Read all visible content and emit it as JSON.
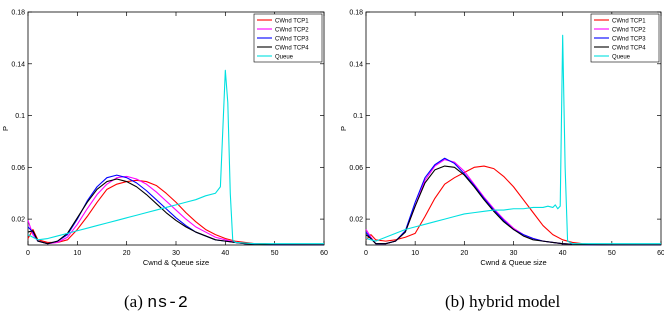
{
  "captions": [
    {
      "label": "(a)",
      "text": "ns-2"
    },
    {
      "label": "(b)",
      "text": "hybrid model"
    }
  ],
  "chart_data": [
    {
      "type": "line",
      "title": "",
      "xlabel": "Cwnd & Queue size",
      "ylabel": "P",
      "xlim": [
        0,
        60
      ],
      "ylim": [
        0,
        0.18
      ],
      "xticks": [
        0,
        10,
        20,
        30,
        40,
        50,
        60
      ],
      "yticks": [
        0.02,
        0.06,
        0.1,
        0.14,
        0.18
      ],
      "grid": false,
      "legend_position": "top-right",
      "series": [
        {
          "name": "CWnd TCP1",
          "color": "#ff0000",
          "x": [
            0,
            1,
            2,
            4,
            6,
            8,
            10,
            12,
            14,
            16,
            18,
            20,
            22,
            24,
            26,
            28,
            30,
            32,
            34,
            36,
            38,
            40,
            42,
            44,
            46,
            48,
            50,
            55,
            60
          ],
          "y": [
            0.005,
            0.012,
            0.004,
            0.002,
            0.002,
            0.004,
            0.012,
            0.022,
            0.033,
            0.043,
            0.047,
            0.049,
            0.05,
            0.049,
            0.046,
            0.04,
            0.033,
            0.025,
            0.018,
            0.012,
            0.008,
            0.005,
            0.003,
            0.002,
            0.001,
            0.001,
            0.0005,
            0.0003,
            0.0002
          ]
        },
        {
          "name": "CWnd TCP2",
          "color": "#ff00ff",
          "x": [
            0,
            1,
            2,
            4,
            6,
            8,
            10,
            12,
            14,
            16,
            18,
            20,
            22,
            24,
            26,
            28,
            30,
            32,
            34,
            36,
            38,
            40,
            42,
            44,
            46,
            48,
            50,
            55,
            60
          ],
          "y": [
            0.019,
            0.008,
            0.003,
            0.001,
            0.002,
            0.006,
            0.016,
            0.028,
            0.039,
            0.047,
            0.052,
            0.053,
            0.051,
            0.047,
            0.041,
            0.034,
            0.027,
            0.02,
            0.014,
            0.01,
            0.006,
            0.004,
            0.002,
            0.001,
            0.001,
            0.0005,
            0.0003,
            0.0002,
            0.0001
          ]
        },
        {
          "name": "CWnd TCP3",
          "color": "#0000ff",
          "x": [
            0,
            1,
            2,
            4,
            6,
            8,
            10,
            12,
            14,
            16,
            18,
            20,
            22,
            24,
            26,
            28,
            30,
            32,
            34,
            36,
            38,
            40,
            42,
            44,
            46,
            48,
            50,
            55,
            60
          ],
          "y": [
            0.014,
            0.01,
            0.003,
            0.001,
            0.003,
            0.008,
            0.02,
            0.034,
            0.045,
            0.052,
            0.054,
            0.052,
            0.048,
            0.042,
            0.035,
            0.028,
            0.021,
            0.015,
            0.01,
            0.007,
            0.004,
            0.003,
            0.002,
            0.001,
            0.0005,
            0.0003,
            0.0002,
            0.0001,
            0.0001
          ]
        },
        {
          "name": "CWnd TCP4",
          "color": "#000000",
          "x": [
            0,
            1,
            2,
            4,
            6,
            8,
            10,
            12,
            14,
            16,
            18,
            20,
            22,
            24,
            26,
            28,
            30,
            32,
            34,
            36,
            38,
            40,
            42,
            44,
            46,
            48,
            50,
            55,
            60
          ],
          "y": [
            0.01,
            0.011,
            0.003,
            0.001,
            0.003,
            0.009,
            0.021,
            0.033,
            0.043,
            0.049,
            0.051,
            0.049,
            0.045,
            0.039,
            0.032,
            0.025,
            0.019,
            0.014,
            0.01,
            0.007,
            0.004,
            0.003,
            0.002,
            0.001,
            0.0005,
            0.0003,
            0.0002,
            0.0001,
            0.0001
          ]
        },
        {
          "name": "Queue",
          "color": "#00e0e0",
          "x": [
            0,
            1,
            2,
            4,
            6,
            8,
            10,
            12,
            14,
            16,
            18,
            20,
            22,
            24,
            26,
            28,
            30,
            32,
            34,
            36,
            38,
            39,
            40,
            40.5,
            41,
            41.5,
            42,
            44,
            46,
            48,
            50,
            55,
            60
          ],
          "y": [
            0.008,
            0.006,
            0.004,
            0.005,
            0.007,
            0.009,
            0.011,
            0.013,
            0.015,
            0.017,
            0.019,
            0.021,
            0.023,
            0.025,
            0.027,
            0.029,
            0.031,
            0.033,
            0.035,
            0.038,
            0.04,
            0.045,
            0.135,
            0.11,
            0.04,
            0.004,
            0.002,
            0.0015,
            0.001,
            0.001,
            0.001,
            0.001,
            0.001
          ]
        }
      ]
    },
    {
      "type": "line",
      "title": "",
      "xlabel": "Cwnd & Queue size",
      "ylabel": "P",
      "xlim": [
        0,
        60
      ],
      "ylim": [
        0,
        0.18
      ],
      "xticks": [
        0,
        10,
        20,
        30,
        40,
        50,
        60
      ],
      "yticks": [
        0.02,
        0.06,
        0.1,
        0.14,
        0.18
      ],
      "grid": false,
      "legend_position": "top-right",
      "series": [
        {
          "name": "CWnd TCP1",
          "color": "#ff0000",
          "x": [
            0,
            1,
            2,
            4,
            6,
            8,
            10,
            12,
            14,
            16,
            18,
            20,
            22,
            24,
            26,
            28,
            30,
            32,
            34,
            36,
            38,
            40,
            42,
            44,
            46,
            48,
            50,
            55,
            60
          ],
          "y": [
            0.004,
            0.008,
            0.004,
            0.003,
            0.004,
            0.006,
            0.009,
            0.022,
            0.036,
            0.047,
            0.052,
            0.056,
            0.06,
            0.061,
            0.059,
            0.053,
            0.045,
            0.035,
            0.025,
            0.015,
            0.008,
            0.004,
            0.002,
            0.001,
            0.0005,
            0.0003,
            0.0002,
            0.0001,
            0.0001
          ]
        },
        {
          "name": "CWnd TCP2",
          "color": "#ff00ff",
          "x": [
            0,
            1,
            2,
            4,
            6,
            8,
            10,
            12,
            14,
            16,
            18,
            20,
            22,
            24,
            26,
            28,
            30,
            32,
            34,
            36,
            38,
            40,
            42,
            44,
            46,
            48,
            50,
            55,
            60
          ],
          "y": [
            0.012,
            0.006,
            0.001,
            0.001,
            0.003,
            0.01,
            0.03,
            0.05,
            0.061,
            0.066,
            0.064,
            0.057,
            0.047,
            0.037,
            0.028,
            0.02,
            0.013,
            0.008,
            0.005,
            0.003,
            0.002,
            0.001,
            0.0005,
            0.0003,
            0.0002,
            0.0001,
            0.0001,
            0.0001,
            0.0001
          ]
        },
        {
          "name": "CWnd TCP3",
          "color": "#0000ff",
          "x": [
            0,
            1,
            2,
            4,
            6,
            8,
            10,
            12,
            14,
            16,
            18,
            20,
            22,
            24,
            26,
            28,
            30,
            32,
            34,
            36,
            38,
            40,
            42,
            44,
            46,
            48,
            50,
            55,
            60
          ],
          "y": [
            0.01,
            0.005,
            0.001,
            0.001,
            0.003,
            0.011,
            0.033,
            0.052,
            0.062,
            0.067,
            0.063,
            0.055,
            0.046,
            0.036,
            0.027,
            0.019,
            0.012,
            0.008,
            0.005,
            0.003,
            0.002,
            0.001,
            0.0005,
            0.0003,
            0.0002,
            0.0001,
            0.0001,
            0.0001,
            0.0001
          ]
        },
        {
          "name": "CWnd TCP4",
          "color": "#000000",
          "x": [
            0,
            1,
            2,
            4,
            6,
            8,
            10,
            12,
            14,
            16,
            18,
            20,
            22,
            24,
            26,
            28,
            30,
            32,
            34,
            36,
            38,
            40,
            42,
            44,
            46,
            48,
            50,
            55,
            60
          ],
          "y": [
            0.008,
            0.005,
            0.001,
            0.001,
            0.003,
            0.01,
            0.03,
            0.048,
            0.058,
            0.061,
            0.06,
            0.054,
            0.045,
            0.035,
            0.026,
            0.018,
            0.012,
            0.007,
            0.004,
            0.003,
            0.002,
            0.001,
            0.0005,
            0.0003,
            0.0002,
            0.0001,
            0.0001,
            0.0001,
            0.0001
          ]
        },
        {
          "name": "Queue",
          "color": "#00e0e0",
          "x": [
            0,
            1,
            2,
            4,
            6,
            8,
            10,
            12,
            14,
            16,
            18,
            20,
            22,
            24,
            26,
            28,
            30,
            32,
            34,
            36,
            37,
            38,
            38.5,
            39,
            39.5,
            40,
            40.5,
            41,
            42,
            44,
            46,
            48,
            50,
            55,
            60
          ],
          "y": [
            0.005,
            0.004,
            0.003,
            0.006,
            0.009,
            0.012,
            0.014,
            0.016,
            0.018,
            0.02,
            0.022,
            0.024,
            0.025,
            0.026,
            0.027,
            0.027,
            0.028,
            0.028,
            0.029,
            0.029,
            0.03,
            0.029,
            0.031,
            0.028,
            0.03,
            0.162,
            0.06,
            0.003,
            0.001,
            0.001,
            0.001,
            0.001,
            0.001,
            0.001,
            0.001
          ]
        }
      ]
    }
  ]
}
